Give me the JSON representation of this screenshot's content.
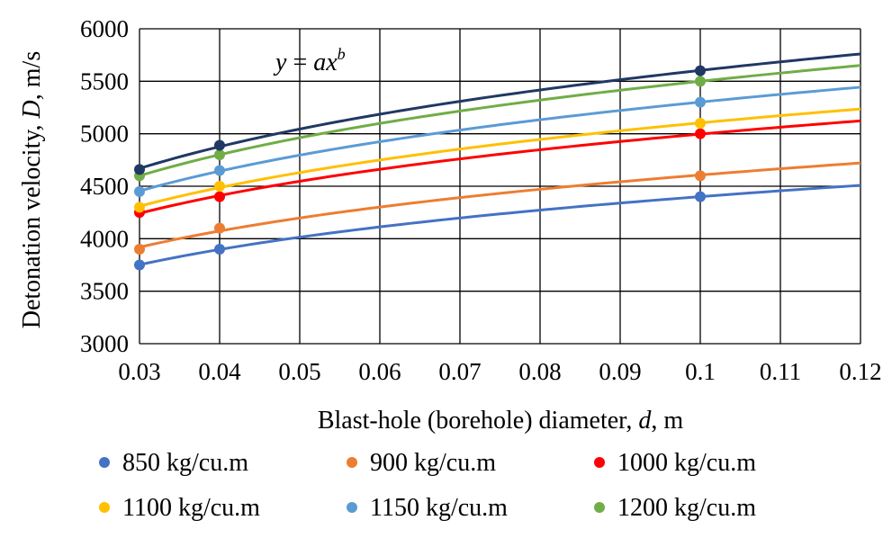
{
  "chart_data": {
    "type": "scatter",
    "xlabel": {
      "prefix": "Blast-hole (borehole) diameter, ",
      "var": "d",
      "suffix": ", m"
    },
    "ylabel": {
      "prefix": "Detonation velocity, ",
      "var": "D",
      "suffix": ", m/s"
    },
    "annotation": {
      "y": "y",
      "eq": " = ",
      "ax": "ax",
      "b": "b"
    },
    "xlim": [
      0.03,
      0.12
    ],
    "ylim": [
      3000,
      6000
    ],
    "x_ticks": [
      "0.03",
      "0.04",
      "0.05",
      "0.06",
      "0.07",
      "0.08",
      "0.09",
      "0.1",
      "0.11",
      "0.12"
    ],
    "y_ticks": [
      "3000",
      "3500",
      "4000",
      "4500",
      "5000",
      "5500",
      "6000"
    ],
    "grid": true,
    "legend_position": "bottom",
    "x": [
      0.03,
      0.04,
      0.1
    ],
    "series": [
      {
        "name": "850 kg/cu.m",
        "color": "#4472C4",
        "line_color": "#4472C4",
        "values": [
          3750,
          3900,
          4400
        ]
      },
      {
        "name": "900 kg/cu.m",
        "color": "#ED7D31",
        "line_color": "#ED7D31",
        "values": [
          3900,
          4100,
          4600
        ]
      },
      {
        "name": "1000 kg/cu.m",
        "color": "#FF0000",
        "line_color": "#FF0000",
        "values": [
          4250,
          4400,
          5000
        ]
      },
      {
        "name": "1100 kg/cu.m",
        "color": "#FFC000",
        "line_color": "#FFC000",
        "values": [
          4300,
          4500,
          5100
        ]
      },
      {
        "name": "1150 kg/cu.m",
        "color": "#5B9BD5",
        "line_color": "#5B9BD5",
        "values": [
          4450,
          4650,
          5300
        ]
      },
      {
        "name": "1200 kg/cu.m",
        "color": "#70AD47",
        "line_color": "#70AD47",
        "values": [
          4600,
          4800,
          5500
        ]
      },
      {
        "name": "",
        "color": "#203864",
        "line_color": "#203864",
        "values": [
          4660,
          4890,
          5600
        ]
      }
    ]
  }
}
